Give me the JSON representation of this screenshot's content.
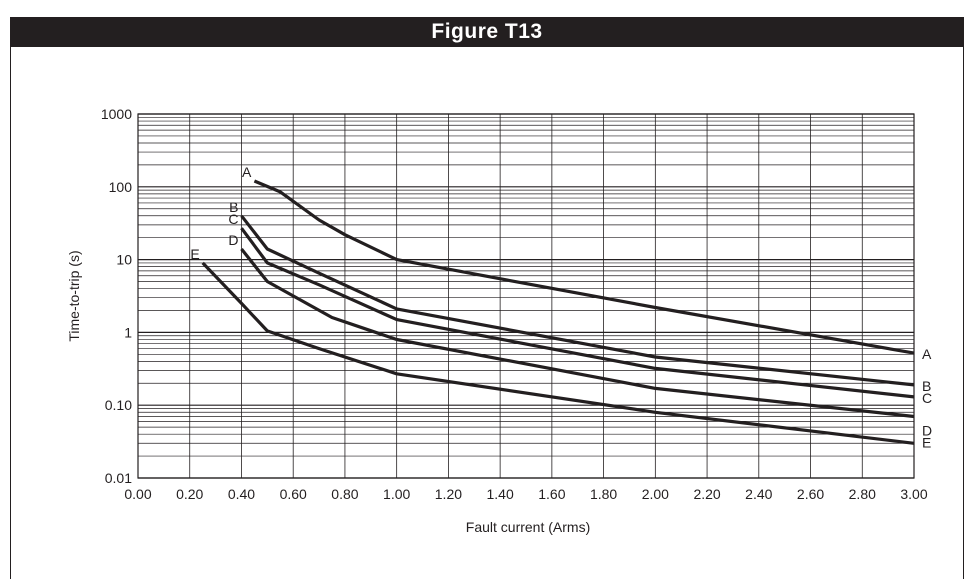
{
  "header": {
    "title": "Figure T13"
  },
  "chart_data": {
    "type": "line",
    "xlabel": "Fault current (Arms)",
    "ylabel": "Time-to-trip (s)",
    "x_scale": "linear",
    "y_scale": "log",
    "xlim": [
      0.0,
      3.0
    ],
    "ylim": [
      0.01,
      1000
    ],
    "grid": true,
    "x_ticks": [
      "0.00",
      "0.20",
      "0.40",
      "0.60",
      "0.80",
      "1.00",
      "1.20",
      "1.40",
      "1.60",
      "1.80",
      "2.00",
      "2.20",
      "2.40",
      "2.60",
      "2.80",
      "3.00"
    ],
    "y_ticks": [
      {
        "value": 0.01,
        "label": "0.01"
      },
      {
        "value": 0.1,
        "label": "0.10"
      },
      {
        "value": 1,
        "label": "1"
      },
      {
        "value": 10,
        "label": "10"
      },
      {
        "value": 100,
        "label": "100"
      },
      {
        "value": 1000,
        "label": "1000"
      }
    ],
    "series": [
      {
        "name": "A",
        "points": [
          [
            0.45,
            120
          ],
          [
            0.55,
            85
          ],
          [
            0.7,
            35
          ],
          [
            0.8,
            22
          ],
          [
            1.0,
            10
          ],
          [
            2.0,
            2.2
          ],
          [
            3.0,
            0.52
          ]
        ]
      },
      {
        "name": "B",
        "points": [
          [
            0.4,
            40
          ],
          [
            0.5,
            14
          ],
          [
            0.7,
            6.5
          ],
          [
            1.0,
            2.1
          ],
          [
            2.0,
            0.46
          ],
          [
            3.0,
            0.19
          ]
        ]
      },
      {
        "name": "C",
        "points": [
          [
            0.4,
            27
          ],
          [
            0.5,
            9
          ],
          [
            0.7,
            4.5
          ],
          [
            1.0,
            1.5
          ],
          [
            2.0,
            0.32
          ],
          [
            3.0,
            0.13
          ]
        ]
      },
      {
        "name": "D",
        "points": [
          [
            0.4,
            14
          ],
          [
            0.5,
            5
          ],
          [
            0.75,
            1.6
          ],
          [
            1.0,
            0.8
          ],
          [
            2.0,
            0.17
          ],
          [
            3.0,
            0.07
          ]
        ]
      },
      {
        "name": "E",
        "points": [
          [
            0.25,
            9
          ],
          [
            0.4,
            2.5
          ],
          [
            0.5,
            1.05
          ],
          [
            0.7,
            0.6
          ],
          [
            1.0,
            0.27
          ],
          [
            2.0,
            0.08
          ],
          [
            3.0,
            0.03
          ]
        ]
      }
    ],
    "start_labels": [
      "A",
      "B",
      "C",
      "D",
      "E"
    ],
    "end_labels": [
      "A",
      "B",
      "C",
      "D",
      "E"
    ]
  }
}
